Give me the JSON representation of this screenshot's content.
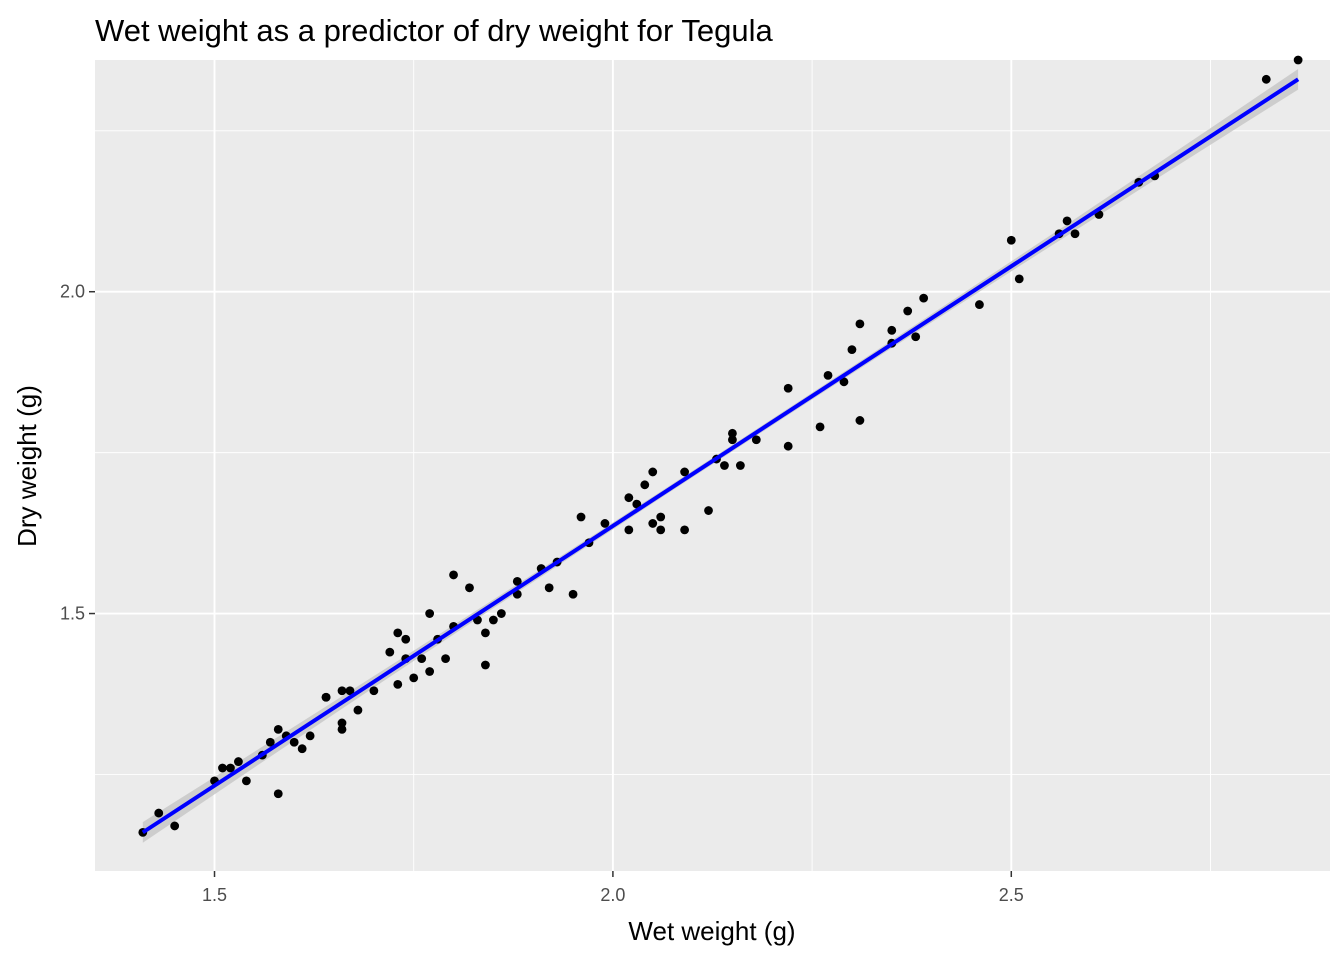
{
  "chart_data": {
    "type": "scatter",
    "title": "Wet weight as a predictor of dry weight for Tegula",
    "xlabel": "Wet weight (g)",
    "ylabel": "Dry weight (g)",
    "xlim": [
      1.35,
      2.9
    ],
    "ylim": [
      1.1,
      2.36
    ],
    "x_ticks": [
      {
        "value": 1.5,
        "label": "1.5"
      },
      {
        "value": 2.0,
        "label": "2.0"
      },
      {
        "value": 2.5,
        "label": "2.5"
      }
    ],
    "y_ticks": [
      {
        "value": 1.5,
        "label": "1.5"
      },
      {
        "value": 2.0,
        "label": "2.0"
      }
    ],
    "x_minor": [
      1.75,
      2.25,
      2.75
    ],
    "y_minor": [
      1.25,
      1.75,
      2.25
    ],
    "grid": true,
    "colors": {
      "panel": "#ebebeb",
      "grid": "#ffffff",
      "points": "#000000",
      "fit_line": "#0000ff",
      "confidence_band": "#c8c8c8"
    },
    "series": [
      {
        "type": "scatter",
        "x": [
          1.41,
          1.43,
          1.45,
          1.5,
          1.51,
          1.52,
          1.53,
          1.54,
          1.56,
          1.57,
          1.58,
          1.58,
          1.59,
          1.6,
          1.61,
          1.62,
          1.64,
          1.64,
          1.66,
          1.66,
          1.66,
          1.67,
          1.68,
          1.7,
          1.72,
          1.73,
          1.73,
          1.74,
          1.74,
          1.75,
          1.76,
          1.77,
          1.77,
          1.78,
          1.79,
          1.8,
          1.8,
          1.82,
          1.83,
          1.84,
          1.84,
          1.85,
          1.86,
          1.88,
          1.88,
          1.91,
          1.92,
          1.93,
          1.95,
          1.96,
          1.97,
          1.99,
          2.02,
          2.02,
          2.03,
          2.04,
          2.05,
          2.05,
          2.06,
          2.06,
          2.09,
          2.09,
          2.12,
          2.13,
          2.14,
          2.15,
          2.15,
          2.16,
          2.18,
          2.22,
          2.22,
          2.26,
          2.27,
          2.29,
          2.3,
          2.31,
          2.31,
          2.35,
          2.35,
          2.37,
          2.38,
          2.39,
          2.46,
          2.5,
          2.51,
          2.56,
          2.57,
          2.58,
          2.61,
          2.66,
          2.68,
          2.82,
          2.86
        ],
        "y": [
          1.16,
          1.19,
          1.17,
          1.24,
          1.26,
          1.26,
          1.27,
          1.24,
          1.28,
          1.3,
          1.32,
          1.22,
          1.31,
          1.3,
          1.29,
          1.31,
          1.37,
          1.37,
          1.38,
          1.32,
          1.33,
          1.38,
          1.35,
          1.38,
          1.44,
          1.47,
          1.39,
          1.46,
          1.43,
          1.4,
          1.43,
          1.41,
          1.5,
          1.46,
          1.43,
          1.56,
          1.48,
          1.54,
          1.49,
          1.42,
          1.47,
          1.49,
          1.5,
          1.55,
          1.53,
          1.57,
          1.54,
          1.58,
          1.53,
          1.65,
          1.61,
          1.64,
          1.68,
          1.63,
          1.67,
          1.7,
          1.72,
          1.64,
          1.65,
          1.63,
          1.72,
          1.63,
          1.66,
          1.74,
          1.73,
          1.78,
          1.77,
          1.73,
          1.77,
          1.85,
          1.76,
          1.79,
          1.87,
          1.86,
          1.91,
          1.95,
          1.8,
          1.94,
          1.92,
          1.97,
          1.93,
          1.99,
          1.98,
          2.08,
          2.02,
          2.09,
          2.11,
          2.09,
          2.12,
          2.17,
          2.18,
          2.33,
          2.36
        ]
      },
      {
        "type": "line",
        "x": [
          1.41,
          2.86
        ],
        "y": [
          1.16,
          2.33
        ]
      }
    ]
  }
}
